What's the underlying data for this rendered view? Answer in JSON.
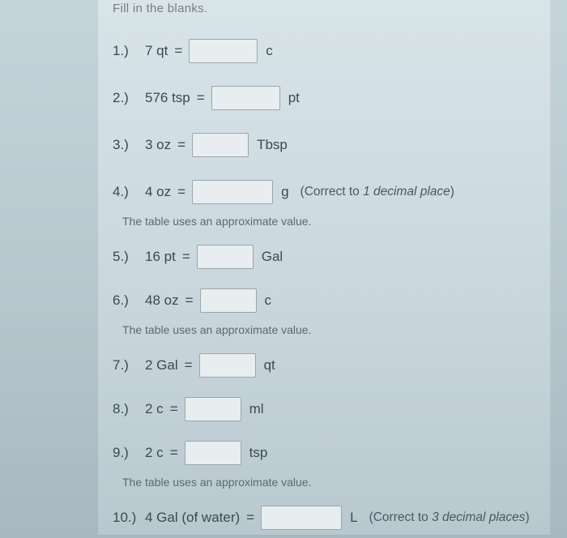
{
  "colors": {
    "page_bg_top": "#c5d4db",
    "page_bg_bottom": "#a8b8c0",
    "sheet_bg_top": "#d8e4e8",
    "sheet_bg_bottom": "#b8c8ce",
    "text": "#3a4a52",
    "header_text": "#787d86",
    "input_bg": "#e8eef0",
    "input_border": "#9aa6ab",
    "note_text": "#5a6a72"
  },
  "typography": {
    "family": "Arial",
    "base_size_pt": 12,
    "num_size_pt": 13,
    "note_size_pt": 10.5
  },
  "header_fragment": "Fill in the blanks.",
  "approx_note": "The table uses an approximate value.",
  "items": [
    {
      "n": "1.)",
      "qty": "7 qt",
      "unit": "c",
      "note": ""
    },
    {
      "n": "2.)",
      "qty": "576 tsp",
      "unit": "pt",
      "note": ""
    },
    {
      "n": "3.)",
      "qty": "3 oz",
      "unit": "Tbsp",
      "note": ""
    },
    {
      "n": "4.)",
      "qty": "4 oz",
      "unit": "g",
      "note": "(Correct to 1 decimal place)",
      "approx_after": true
    },
    {
      "n": "5.)",
      "qty": "16 pt",
      "unit": "Gal",
      "note": ""
    },
    {
      "n": "6.)",
      "qty": "48 oz",
      "unit": "c",
      "note": "",
      "approx_after": true
    },
    {
      "n": "7.)",
      "qty": "2 Gal",
      "unit": "qt",
      "note": ""
    },
    {
      "n": "8.)",
      "qty": "2 c",
      "unit": "ml",
      "note": ""
    },
    {
      "n": "9.)",
      "qty": "2 c",
      "unit": "tsp",
      "note": "",
      "approx_after": true
    },
    {
      "n": "10.)",
      "qty": "4 Gal (of water)",
      "unit": "L",
      "note": "(Correct to 3 decimal places)"
    }
  ],
  "eq": "="
}
